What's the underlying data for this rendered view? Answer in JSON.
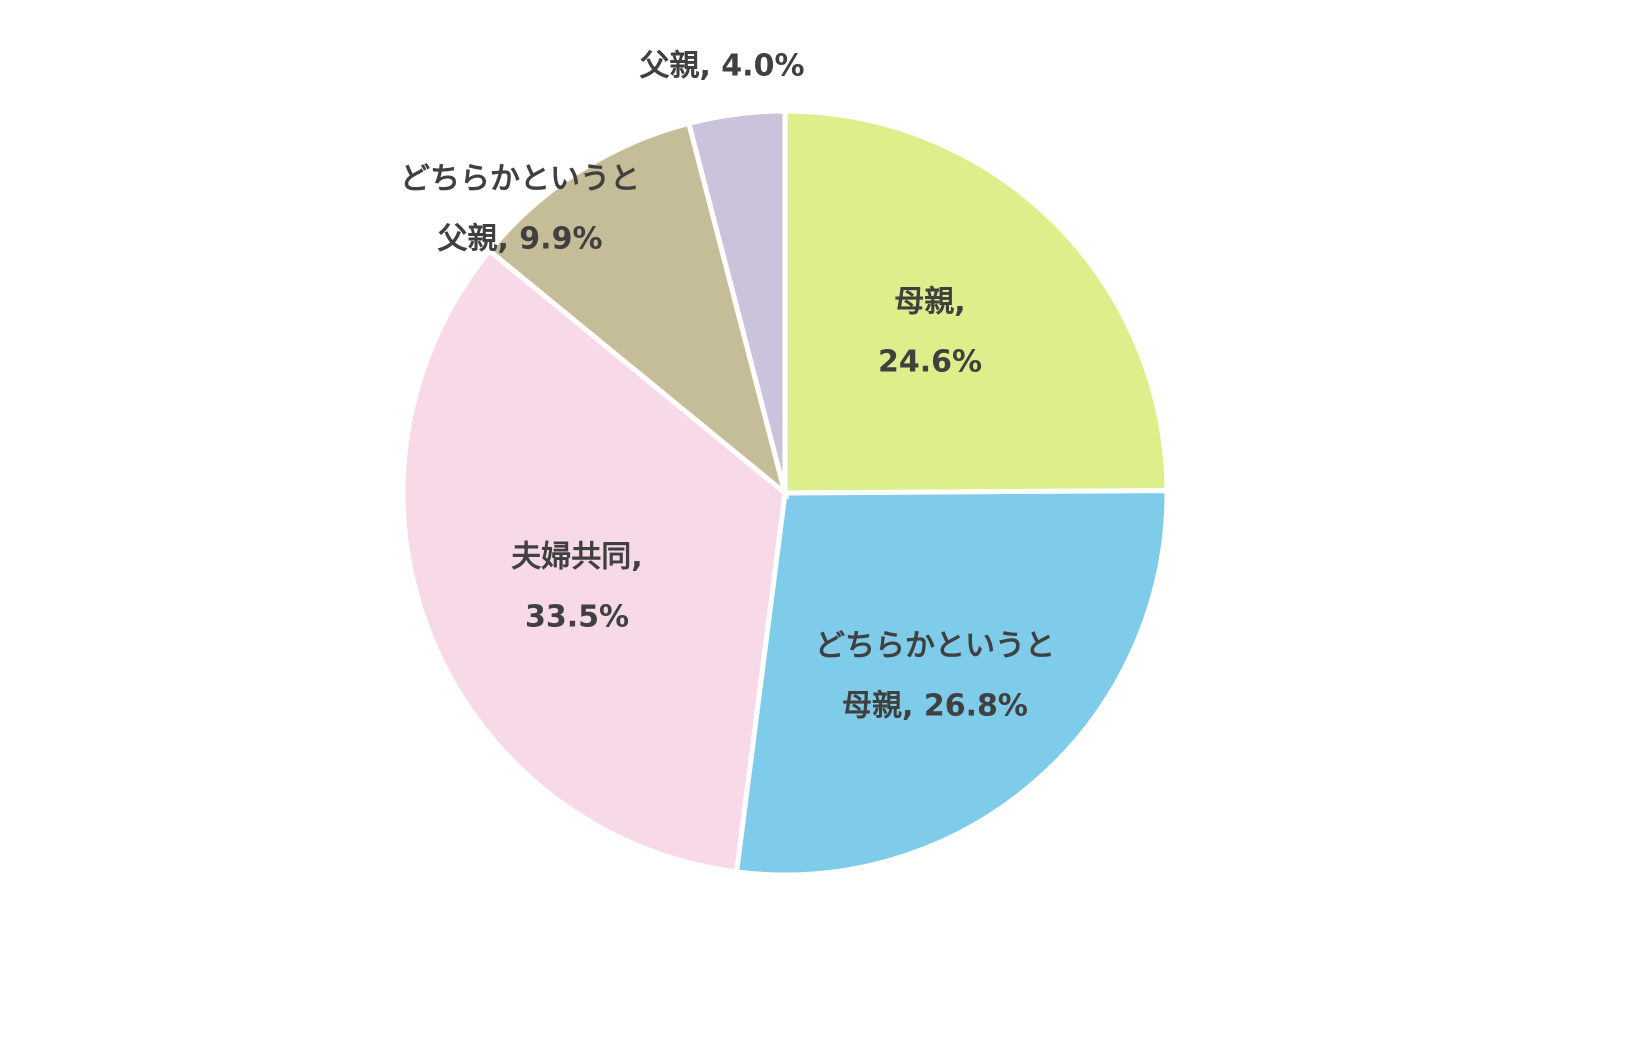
{
  "chart_data": {
    "type": "pie",
    "values": [
      24.6,
      26.8,
      33.5,
      9.9,
      4.0
    ],
    "data_labels": [
      [
        "母親,",
        "24.6%"
      ],
      [
        "どちらかというと",
        "母親, 26.8%"
      ],
      [
        "夫婦共同,",
        "33.5%"
      ],
      [
        "どちらかというと",
        "父親, 9.9%"
      ],
      [
        "父親, 4.0%"
      ]
    ],
    "colors": [
      "#dcef8a",
      "#7ecbea",
      "#f7d9e8",
      "#c5bd98",
      "#cbc2dc"
    ]
  }
}
